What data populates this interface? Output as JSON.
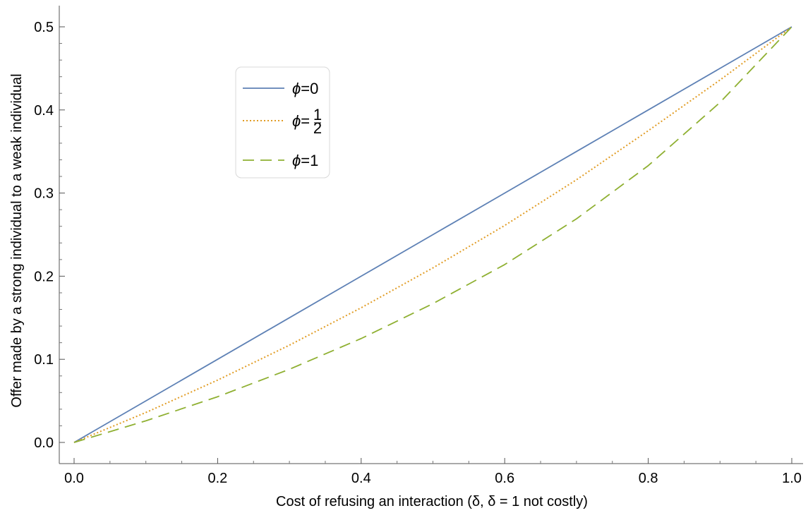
{
  "chart_data": {
    "type": "line",
    "title": "",
    "xlabel": "Cost of refusing an interaction (δ, δ = 1 not costly)",
    "ylabel": "Offer made by a strong individual to a weak individual",
    "xlim": [
      0,
      1
    ],
    "ylim": [
      0,
      0.5
    ],
    "xticks": [
      "0.0",
      "0.2",
      "0.4",
      "0.6",
      "0.8",
      "1.0"
    ],
    "yticks": [
      "0.0",
      "0.1",
      "0.2",
      "0.3",
      "0.4",
      "0.5"
    ],
    "grid": false,
    "legend_position": "upper-left inset",
    "x": [
      0.0,
      0.1,
      0.2,
      0.3,
      0.4,
      0.5,
      0.6,
      0.7,
      0.8,
      0.9,
      1.0
    ],
    "series": [
      {
        "name": "ϕ=0",
        "legend_symbol": "ϕ",
        "legend_value": "=0",
        "color": "#5e81b5",
        "style": "solid",
        "values": [
          0.0,
          0.05,
          0.1,
          0.15,
          0.2,
          0.25,
          0.3,
          0.35,
          0.4,
          0.45,
          0.5
        ]
      },
      {
        "name": "ϕ=1/2",
        "legend_symbol": "ϕ",
        "legend_value": "=",
        "legend_fraction_num": "1",
        "legend_fraction_den": "2",
        "color": "#e19c24",
        "style": "dotted",
        "values": [
          0.0,
          0.036,
          0.075,
          0.117,
          0.162,
          0.21,
          0.261,
          0.316,
          0.375,
          0.436,
          0.5
        ]
      },
      {
        "name": "ϕ=1",
        "legend_symbol": "ϕ",
        "legend_value": "=1",
        "color": "#8fb032",
        "style": "dashed",
        "values": [
          0.0,
          0.026,
          0.055,
          0.088,
          0.125,
          0.167,
          0.214,
          0.269,
          0.333,
          0.409,
          0.5
        ]
      }
    ]
  }
}
